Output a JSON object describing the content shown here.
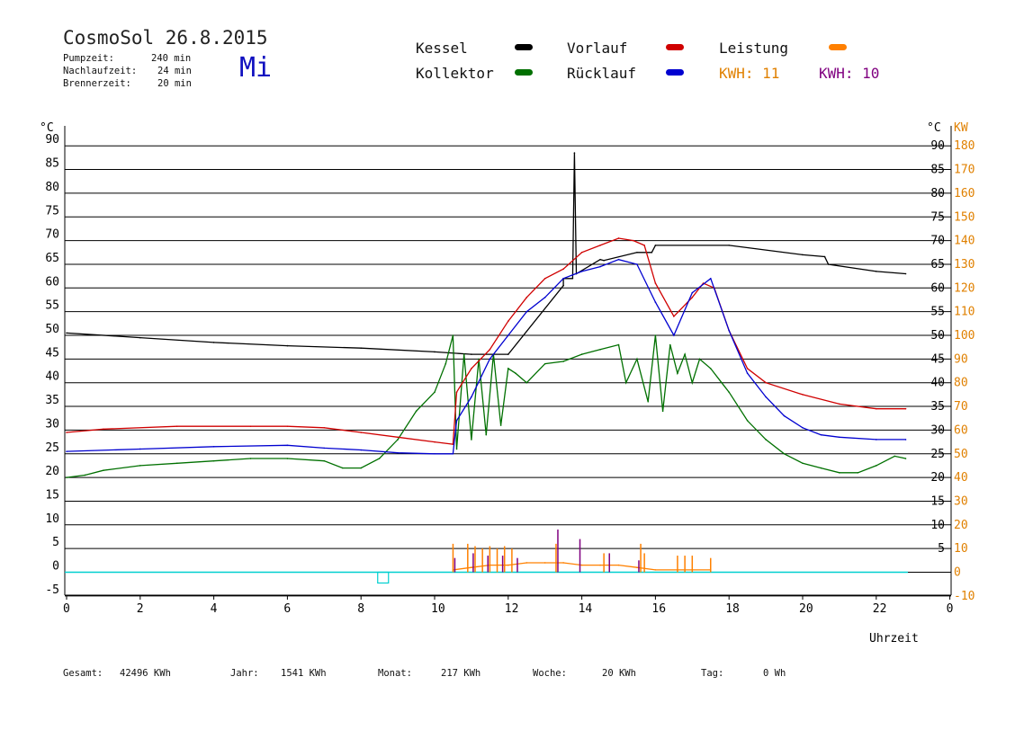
{
  "header": {
    "title": "CosmoSol 26.8.2015",
    "day": "Mi",
    "params": [
      {
        "label": "Pumpzeit:",
        "value": "240 min"
      },
      {
        "label": "Nachlaufzeit:",
        "value": "24 min"
      },
      {
        "label": "Brennerzeit:",
        "value": "20 min"
      }
    ]
  },
  "legend": {
    "kessel": "Kessel",
    "kollektor": "Kollektor",
    "vorlauf": "Vorlauf",
    "ruecklauf": "Rücklauf",
    "leistung": "Leistung",
    "kwh1": "KWH: 11",
    "kwh2": "KWH: 10"
  },
  "footer": {
    "gesamt_label": "Gesamt:",
    "gesamt": "42496 KWh",
    "jahr_label": "Jahr:",
    "jahr": "1541 KWh",
    "monat_label": "Monat:",
    "monat": "217 KWh",
    "woche_label": "Woche:",
    "woche": "20 KWh",
    "tag_label": "Tag:",
    "tag": "0 Wh"
  },
  "colors": {
    "kessel": "#000000",
    "kollektor": "#007000",
    "vorlauf": "#d00000",
    "ruecklauf": "#0000d0",
    "leistung": "#ff8000",
    "kwh2": "#800080",
    "axis_right": "#e08000",
    "cyan": "#00d0d0"
  },
  "chart_data": {
    "type": "line",
    "title": "CosmoSol 26.8.2015",
    "xlabel": "Uhrzeit",
    "ylabel_left": "°C",
    "ylabel_right_temp": "°C",
    "ylabel_right_power": "KW",
    "xlim": [
      0,
      24
    ],
    "ylim": [
      -5,
      95
    ],
    "x_ticks": [
      "0",
      "2",
      "4",
      "6",
      "8",
      "10",
      "12",
      "14",
      "16",
      "18",
      "20",
      "22",
      "0"
    ],
    "y_ticks_left": [
      "90",
      "85",
      "80",
      "75",
      "70",
      "65",
      "60",
      "55",
      "50",
      "45",
      "40",
      "35",
      "30",
      "25",
      "20",
      "15",
      "10",
      "5",
      "0",
      "-5"
    ],
    "y_ticks_right_temp": [
      "90",
      "85",
      "80",
      "75",
      "70",
      "65",
      "60",
      "55",
      "50",
      "45",
      "40",
      "35",
      "30",
      "25",
      "20",
      "15",
      "10",
      "5"
    ],
    "y_ticks_right_power": [
      "180",
      "170",
      "160",
      "150",
      "140",
      "130",
      "120",
      "110",
      "100",
      "90",
      "80",
      "70",
      "60",
      "50",
      "40",
      "30",
      "20",
      "10",
      "0",
      "-10"
    ],
    "grid": "horizontal",
    "series": [
      {
        "name": "Kessel",
        "color": "#000000",
        "x": [
          0,
          2,
          4,
          6,
          8,
          10,
          11,
          12,
          13.5,
          13.5,
          13.75,
          13.8,
          13.85,
          14.5,
          14.6,
          15.5,
          15.9,
          16,
          18,
          20,
          20.6,
          20.7,
          22,
          22.8
        ],
        "y": [
          50.5,
          49.5,
          48.5,
          47.8,
          47.3,
          46.5,
          46,
          46,
          60.5,
          62,
          62,
          88.5,
          63,
          66,
          65.8,
          67.5,
          67.5,
          69,
          69,
          67,
          66.6,
          65,
          63.5,
          63
        ]
      },
      {
        "name": "Kollektor",
        "color": "#007000",
        "x": [
          0,
          0.5,
          1,
          2,
          3,
          4,
          5,
          6,
          7,
          7.5,
          8,
          8.5,
          9,
          9.5,
          10,
          10.3,
          10.5,
          10.6,
          10.8,
          11,
          11.2,
          11.4,
          11.6,
          11.8,
          12,
          12.2,
          12.5,
          13,
          13.5,
          14,
          14.5,
          15,
          15.2,
          15.5,
          15.8,
          16,
          16.2,
          16.4,
          16.6,
          16.8,
          17,
          17.2,
          17.5,
          17.8,
          18,
          18.5,
          19,
          19.5,
          20,
          20.5,
          21,
          21.5,
          22,
          22.5,
          22.8
        ],
        "y": [
          20,
          20.5,
          21.5,
          22.5,
          23,
          23.5,
          24,
          24,
          23.5,
          22,
          22,
          24,
          28,
          34,
          38,
          44,
          50,
          26,
          46,
          28,
          45,
          29,
          46,
          31,
          43,
          42,
          40,
          44,
          44.5,
          46,
          47,
          48,
          40,
          45,
          36,
          50,
          34,
          48,
          42,
          46,
          40,
          45,
          43,
          40,
          38,
          32,
          28,
          25,
          23,
          22,
          21,
          21,
          22.5,
          24.5,
          24
        ]
      },
      {
        "name": "Vorlauf",
        "color": "#d00000",
        "x": [
          0,
          1,
          3,
          5,
          6,
          7,
          8,
          9,
          10,
          10.5,
          10.6,
          11,
          11.5,
          12,
          12.5,
          13,
          13.5,
          14,
          14.5,
          15,
          15.4,
          15.7,
          16,
          16.5,
          17,
          17.3,
          17.6,
          18,
          18.5,
          19,
          20,
          21,
          22,
          22.8
        ],
        "y": [
          29.5,
          30.2,
          30.8,
          30.8,
          30.8,
          30.5,
          29.5,
          28.5,
          27.5,
          27,
          38,
          43,
          47,
          53,
          58,
          62,
          64,
          67.5,
          69,
          70.5,
          70,
          69,
          61,
          54,
          58,
          61,
          60,
          51,
          43,
          40,
          37.5,
          35.5,
          34.5,
          34.5
        ]
      },
      {
        "name": "Rücklauf",
        "color": "#0000d0",
        "x": [
          0,
          2,
          4,
          6,
          7,
          8,
          9,
          10,
          10.5,
          10.6,
          11,
          11.5,
          12,
          12.5,
          13,
          13.5,
          14,
          14.5,
          15,
          15.5,
          16,
          16.5,
          17,
          17.5,
          18,
          18.5,
          19,
          19.5,
          20,
          20.5,
          21,
          22,
          22.8
        ],
        "y": [
          25.5,
          26,
          26.5,
          26.8,
          26.2,
          25.8,
          25.2,
          25,
          25,
          32,
          37,
          45,
          50,
          55,
          58,
          62,
          63.5,
          64.5,
          66,
          65,
          57,
          50,
          59,
          62,
          51,
          42,
          37,
          33,
          30.5,
          29,
          28.5,
          28,
          28
        ]
      },
      {
        "name": "Leistung",
        "color": "#ff8000",
        "x": [
          10.5,
          11,
          11.5,
          12,
          12.5,
          13,
          13.5,
          14,
          14.5,
          15,
          15.5,
          16,
          16.6,
          17,
          17.5
        ],
        "y": [
          0.5,
          1,
          1.5,
          1.5,
          2,
          2,
          2,
          1.5,
          1.5,
          1.5,
          1,
          0.5,
          0.5,
          0.5,
          0.5
        ]
      }
    ],
    "spikes": {
      "kwh_orange_x": [
        10.5,
        10.9,
        11.1,
        11.3,
        11.5,
        11.7,
        11.9,
        12.1,
        13.3,
        14.6,
        15.6,
        15.7,
        16.6,
        16.8,
        17,
        17.5
      ],
      "kwh_orange_y": [
        6,
        6,
        5.5,
        5,
        5.5,
        5,
        5.5,
        5,
        6,
        4,
        6,
        4,
        3.5,
        3.5,
        3.5,
        3
      ],
      "kwh_purple_x": [
        10.5,
        11,
        11.4,
        11.8,
        12.2,
        13.3,
        13.9,
        14.7,
        15.5
      ],
      "kwh_purple_y": [
        3,
        4,
        3.5,
        3.5,
        3,
        9,
        7,
        4,
        2.5
      ]
    },
    "marker": {
      "x": 8.6,
      "y": -1
    }
  }
}
